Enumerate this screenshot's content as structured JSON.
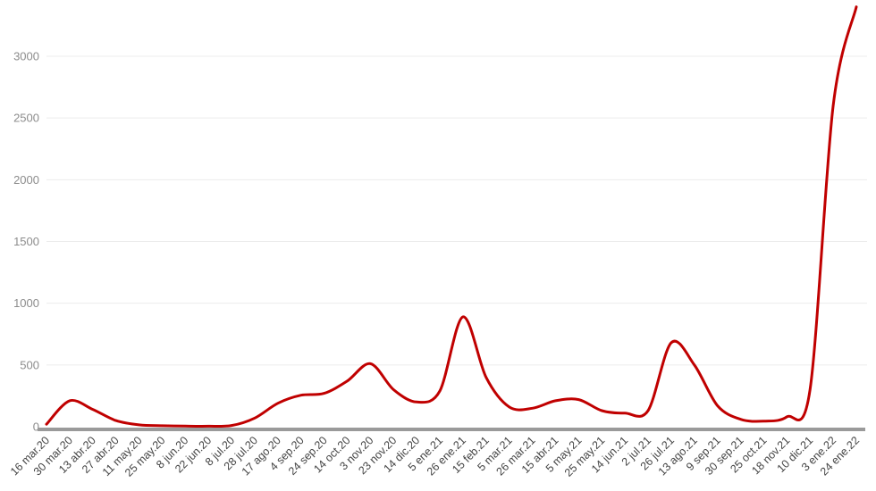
{
  "chart_data": {
    "type": "line",
    "title": "",
    "xlabel": "",
    "ylabel": "",
    "ylim": [
      0,
      3450
    ],
    "yticks": [
      0,
      500,
      1000,
      1500,
      2000,
      2500,
      3000
    ],
    "ytick_labels": [
      "0",
      "500",
      "1000",
      "1500",
      "2000",
      "2500",
      "3000"
    ],
    "grid": true,
    "legend": "none",
    "colors": {
      "line": "#c00000",
      "axis": "#9a9a9a",
      "grid": "#ececec",
      "ytext": "#8c8c8c",
      "xtext": "#444444"
    },
    "xtick_labels": [
      "16 mar.20",
      "30 mar.20",
      "13 abr.20",
      "27 abr.20",
      "11 may.20",
      "25 may.20",
      "8 jun.20",
      "22 jun.20",
      "8 jul.20",
      "28 jul.20",
      "17 ago.20",
      "4 sep.20",
      "24 sep.20",
      "14 oct.20",
      "3 nov.20",
      "23 nov.20",
      "14 dic.20",
      "5 ene.21",
      "26 ene.21",
      "15 feb.21",
      "5 mar.21",
      "26 mar.21",
      "15 abr.21",
      "5 may.21",
      "25 may.21",
      "14 jun.21",
      "2 jul.21",
      "26 jul.21",
      "13 ago.21",
      "9 sep.21",
      "30 sep.21",
      "25 oct.21",
      "18 nov.21",
      "10 dic.21",
      "3 ene.22",
      "24 ene.22"
    ],
    "series": [
      {
        "x": [
          "16 mar.20",
          "30 mar.20",
          "13 abr.20",
          "27 abr.20",
          "11 may.20",
          "25 may.20",
          "8 jun.20",
          "22 jun.20",
          "8 jul.20",
          "28 jul.20",
          "17 ago.20",
          "4 sep.20",
          "24 sep.20",
          "14 oct.20",
          "3 nov.20",
          "23 nov.20",
          "14 dic.20",
          "5 ene.21",
          "26 ene.21",
          "15 feb.21",
          "5 mar.21",
          "26 mar.21",
          "15 abr.21",
          "5 may.21",
          "25 may.21",
          "14 jun.21",
          "2 jul.21",
          "26 jul.21",
          "13 ago.21",
          "9 sep.21",
          "30 sep.21",
          "25 oct.21",
          "18 nov.21",
          "10 dic.21",
          "3 ene.22",
          "24 ene.22"
        ],
        "values": [
          20,
          210,
          140,
          50,
          15,
          8,
          5,
          4,
          10,
          70,
          190,
          255,
          270,
          370,
          510,
          300,
          200,
          290,
          890,
          400,
          160,
          150,
          210,
          220,
          130,
          110,
          130,
          680,
          500,
          170,
          60,
          45,
          80,
          300,
          2600,
          3400
        ]
      }
    ]
  }
}
